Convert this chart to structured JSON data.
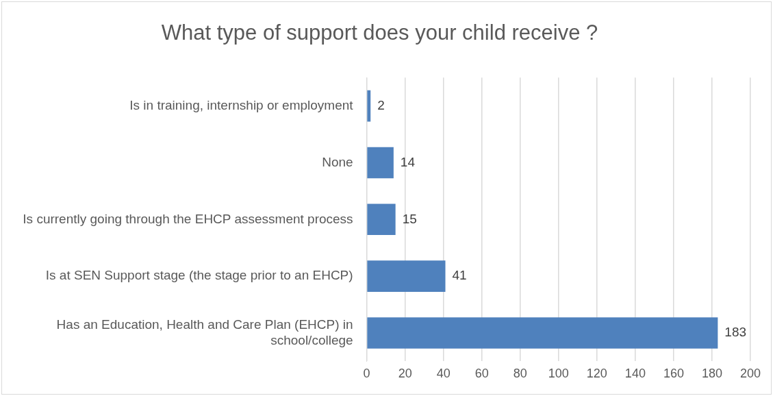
{
  "chart_data": {
    "type": "bar",
    "orientation": "horizontal",
    "title": "What type of support does your child receive ?",
    "categories": [
      "Is in training, internship or employment",
      "None",
      "Is currently going through the EHCP assessment process",
      "Is at SEN Support stage (the stage prior to an EHCP)",
      "Has an Education, Health and Care Plan (EHCP) in school/college"
    ],
    "values": [
      2,
      14,
      15,
      41,
      183
    ],
    "color": "#4f81bd",
    "xlim": [
      0,
      200
    ],
    "xticks": [
      0,
      20,
      40,
      60,
      80,
      100,
      120,
      140,
      160,
      180,
      200
    ],
    "grid": "x",
    "data_labels": true
  }
}
